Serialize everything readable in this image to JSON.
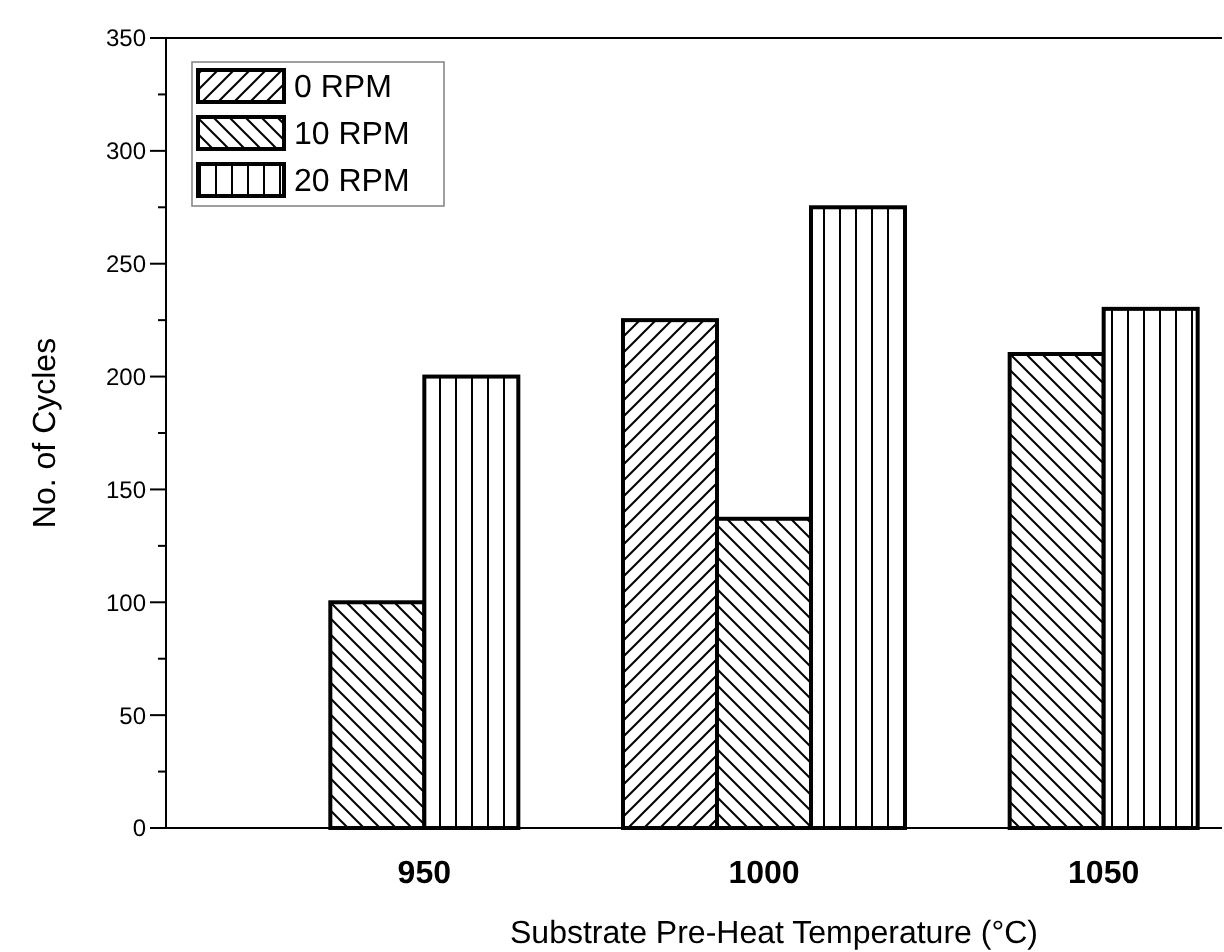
{
  "chart_data": {
    "type": "bar",
    "xlabel": "Substrate Pre-Heat Temperature (°C)",
    "ylabel": "No. of Cycles",
    "categories": [
      "950",
      "1000",
      "1050"
    ],
    "series": [
      {
        "name": "0 RPM",
        "color": "#000000",
        "values": [
          null,
          225,
          null
        ]
      },
      {
        "name": "10 RPM",
        "color": "#000000",
        "values": [
          100,
          137,
          210
        ]
      },
      {
        "name": "20 RPM",
        "color": "#000000",
        "values": [
          200,
          275,
          230
        ]
      }
    ],
    "ylim": [
      0,
      350
    ],
    "yticks": [
      0,
      50,
      100,
      150,
      200,
      250,
      300,
      350
    ],
    "grid": false,
    "legend": "top left"
  }
}
